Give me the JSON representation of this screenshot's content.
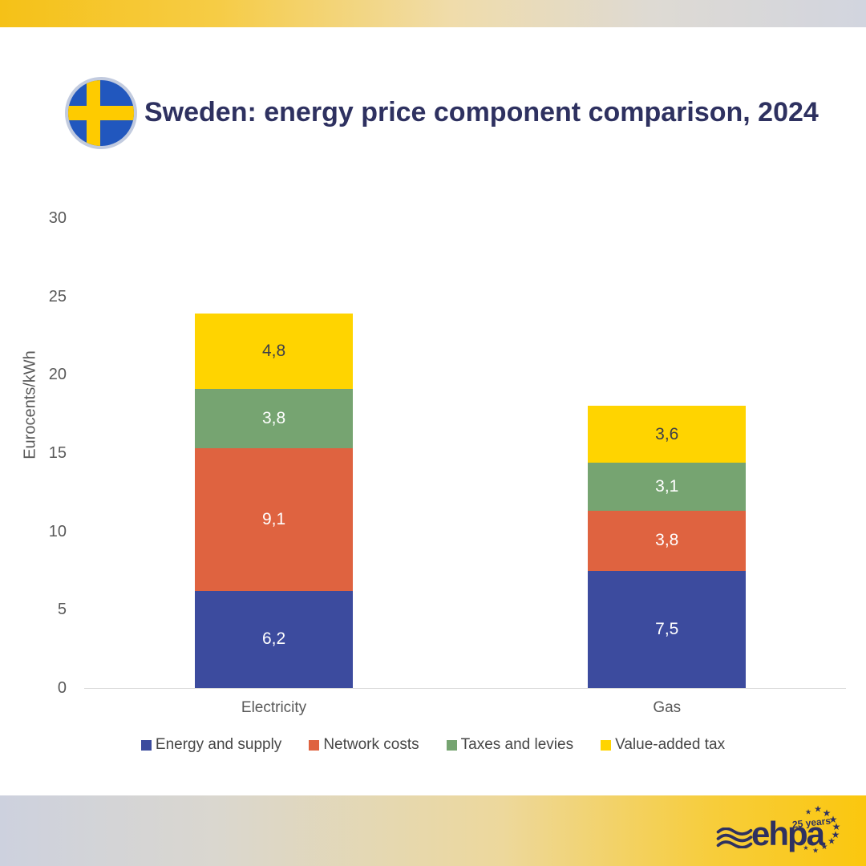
{
  "header": {
    "title": "Sweden: energy price component comparison, 2024",
    "flag_icon": "sweden-flag-icon"
  },
  "chart_data": {
    "type": "bar",
    "stacked": true,
    "title": "Sweden: energy price component comparison, 2024",
    "categories": [
      "Electricity",
      "Gas"
    ],
    "series": [
      {
        "name": "Energy and supply",
        "color": "#3C4B9E",
        "label_color": "#FFFFFF",
        "values": [
          6.2,
          7.5
        ],
        "labels": [
          "6,2",
          "7,5"
        ]
      },
      {
        "name": "Network costs",
        "color": "#DF6340",
        "label_color": "#FFFFFF",
        "values": [
          9.1,
          3.8
        ],
        "labels": [
          "9,1",
          "3,8"
        ]
      },
      {
        "name": "Taxes and levies",
        "color": "#76A471",
        "label_color": "#FFFFFF",
        "values": [
          3.8,
          3.1
        ],
        "labels": [
          "3,8",
          "3,1"
        ]
      },
      {
        "name": "Value-added tax",
        "color": "#FFD400",
        "label_color": "#3D3F49",
        "values": [
          4.8,
          3.6
        ],
        "labels": [
          "4,8",
          "3,6"
        ]
      }
    ],
    "totals": [
      23.9,
      18.0
    ],
    "xlabel": "",
    "ylabel": "Eurocents/kWh",
    "yticks": [
      0,
      5,
      10,
      15,
      20,
      25,
      30
    ],
    "ylim": [
      0,
      30
    ],
    "grid": false,
    "legend_position": "bottom"
  },
  "footer": {
    "logo_text": "ehpa",
    "badge": "25 years",
    "waves_icon": "waves-icon",
    "stars_icon": "eu-stars-icon"
  },
  "brand": {
    "navy": "#2E3160",
    "gold": "#FBC70E",
    "band_gray": "#D2D5DF",
    "flag_blue": "#2157BE",
    "flag_yellow": "#FECB00",
    "axis_text": "#595959"
  }
}
